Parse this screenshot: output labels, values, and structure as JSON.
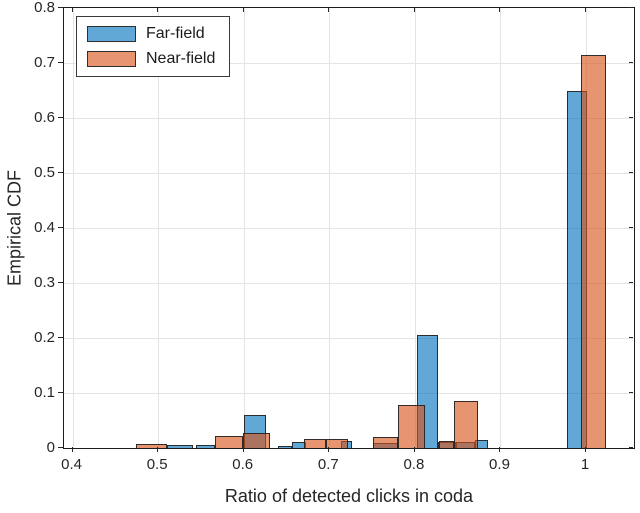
{
  "chart_data": {
    "type": "bar",
    "subtype": "overlapping-histogram",
    "title": "",
    "xlabel": "Ratio of detected clicks in coda",
    "ylabel": "Empirical CDF",
    "xlim": [
      0.39,
      1.056
    ],
    "ylim": [
      0,
      0.8
    ],
    "xticks": [
      0.4,
      0.5,
      0.6,
      0.7,
      0.8,
      0.9,
      1.0
    ],
    "xtick_labels": [
      "0.4",
      "0.5",
      "0.6",
      "0.7",
      "0.8",
      "0.9",
      "1"
    ],
    "yticks": [
      0,
      0.1,
      0.2,
      0.3,
      0.4,
      0.5,
      0.6,
      0.7,
      0.8
    ],
    "ytick_labels": [
      "0",
      "0.1",
      "0.2",
      "0.3",
      "0.4",
      "0.5",
      "0.6",
      "0.7",
      "0.8"
    ],
    "grid": true,
    "grid_color": "#e4e4e4",
    "legend": {
      "position": "top-left",
      "entries": [
        {
          "label": "Far-field",
          "color": "rgba(0,114,189,0.62)"
        },
        {
          "label": "Near-field",
          "color": "rgba(217,83,25,0.62)"
        }
      ]
    },
    "series": [
      {
        "name": "Far-field",
        "color": "rgba(0,114,189,0.62)",
        "edge": "rgba(32,32,32,0.9)",
        "bars": [
          {
            "x0": 0.51,
            "x1": 0.541,
            "y": 0.005
          },
          {
            "x0": 0.544,
            "x1": 0.567,
            "y": 0.005
          },
          {
            "x0": 0.6,
            "x1": 0.626,
            "y": 0.06
          },
          {
            "x0": 0.64,
            "x1": 0.656,
            "y": 0.004
          },
          {
            "x0": 0.656,
            "x1": 0.673,
            "y": 0.011
          },
          {
            "x0": 0.714,
            "x1": 0.727,
            "y": 0.013
          },
          {
            "x0": 0.751,
            "x1": 0.78,
            "y": 0.009
          },
          {
            "x0": 0.802,
            "x1": 0.827,
            "y": 0.205
          },
          {
            "x0": 0.827,
            "x1": 0.848,
            "y": 0.011
          },
          {
            "x0": 0.848,
            "x1": 0.87,
            "y": 0.011
          },
          {
            "x0": 0.87,
            "x1": 0.885,
            "y": 0.014
          },
          {
            "x0": 0.978,
            "x1": 1.001,
            "y": 0.65
          }
        ]
      },
      {
        "name": "Near-field",
        "color": "rgba(217,83,25,0.62)",
        "edge": "rgba(32,32,32,0.9)",
        "bars": [
          {
            "x0": 0.474,
            "x1": 0.51,
            "y": 0.008
          },
          {
            "x0": 0.567,
            "x1": 0.599,
            "y": 0.021
          },
          {
            "x0": 0.599,
            "x1": 0.631,
            "y": 0.028
          },
          {
            "x0": 0.67,
            "x1": 0.696,
            "y": 0.016
          },
          {
            "x0": 0.696,
            "x1": 0.722,
            "y": 0.016
          },
          {
            "x0": 0.751,
            "x1": 0.78,
            "y": 0.02
          },
          {
            "x0": 0.78,
            "x1": 0.812,
            "y": 0.078
          },
          {
            "x0": 0.828,
            "x1": 0.846,
            "y": 0.012
          },
          {
            "x0": 0.846,
            "x1": 0.874,
            "y": 0.085
          },
          {
            "x0": 0.994,
            "x1": 1.023,
            "y": 0.715
          }
        ]
      }
    ]
  }
}
